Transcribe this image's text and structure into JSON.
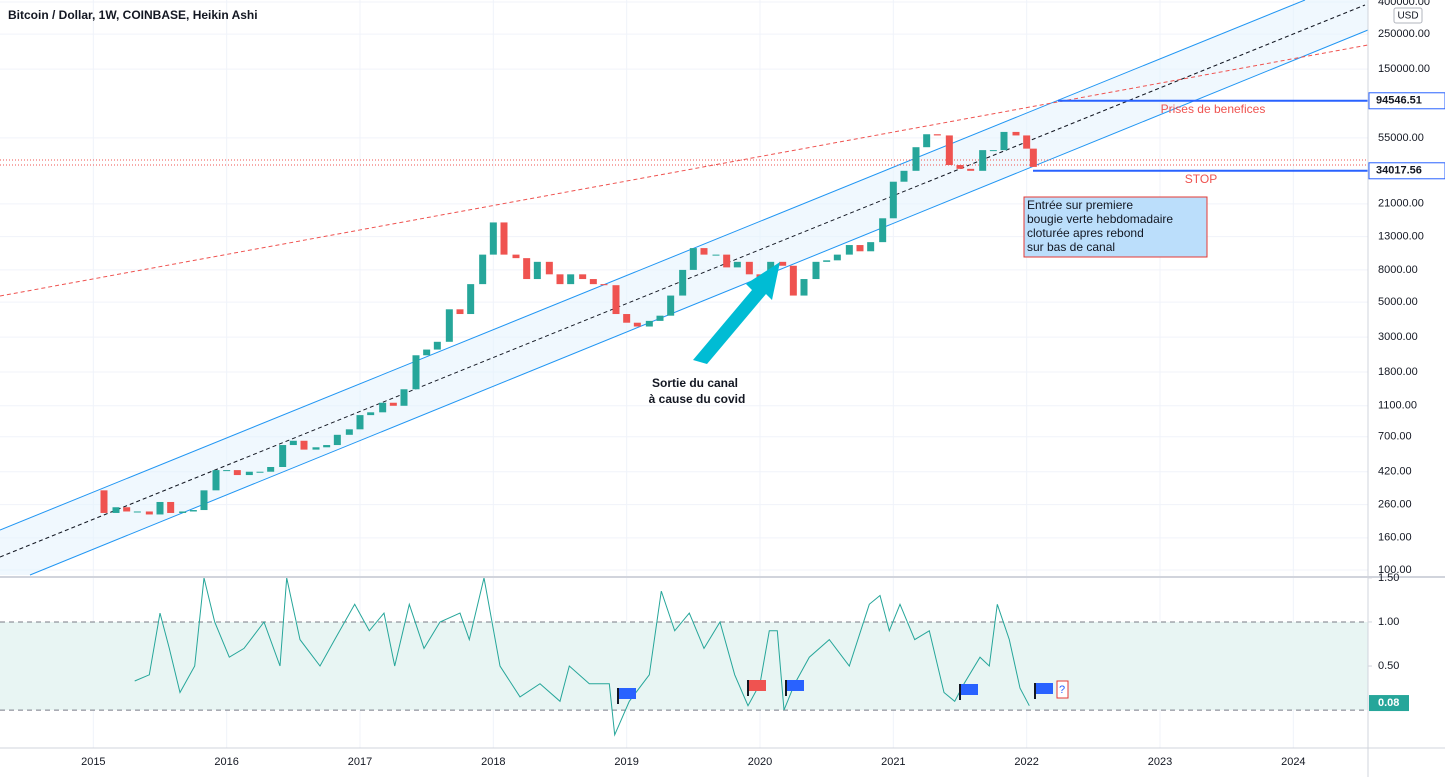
{
  "chart_data": [
    {
      "type": "candlestick",
      "title": "Bitcoin / Dollar, 1W, COINBASE, Heikin Ashi",
      "currency": "USD",
      "log_scale": true,
      "grid": true,
      "up_color": "#26a69a",
      "down_color": "#ef5350",
      "xlim": [
        2014.3,
        2024.56
      ],
      "xticks": [
        2015,
        2016,
        2017,
        2018,
        2019,
        2020,
        2021,
        2022,
        2023,
        2024
      ],
      "ylim": [
        100,
        400000
      ],
      "yticks": [
        {
          "value": 100,
          "label": "100.00"
        },
        {
          "value": 160,
          "label": "160.00"
        },
        {
          "value": 260,
          "label": "260.00"
        },
        {
          "value": 420,
          "label": "420.00"
        },
        {
          "value": 700,
          "label": "700.00"
        },
        {
          "value": 1100,
          "label": "1100.00"
        },
        {
          "value": 1800,
          "label": "1800.00"
        },
        {
          "value": 3000,
          "label": "3000.00"
        },
        {
          "value": 5000,
          "label": "5000.00"
        },
        {
          "value": 8000,
          "label": "8000.00"
        },
        {
          "value": 13000,
          "label": "13000.00"
        },
        {
          "value": 21000,
          "label": "21000.00"
        },
        {
          "value": 55000,
          "label": "55000.00"
        },
        {
          "value": 150000,
          "label": "150000.00"
        },
        {
          "value": 250000,
          "label": "250000.00"
        },
        {
          "value": 400000,
          "label": "400000.00"
        }
      ],
      "x": [
        2015.0,
        2015.08,
        2015.17,
        2015.25,
        2015.33,
        2015.42,
        2015.5,
        2015.58,
        2015.67,
        2015.75,
        2015.83,
        2015.92,
        2016.0,
        2016.08,
        2016.17,
        2016.25,
        2016.33,
        2016.42,
        2016.5,
        2016.58,
        2016.67,
        2016.75,
        2016.83,
        2016.92,
        2017.0,
        2017.08,
        2017.17,
        2017.25,
        2017.33,
        2017.42,
        2017.5,
        2017.58,
        2017.67,
        2017.75,
        2017.83,
        2017.92,
        2018.0,
        2018.08,
        2018.17,
        2018.25,
        2018.33,
        2018.42,
        2018.5,
        2018.58,
        2018.67,
        2018.75,
        2018.83,
        2018.92,
        2019.0,
        2019.08,
        2019.17,
        2019.25,
        2019.33,
        2019.42,
        2019.5,
        2019.58,
        2019.67,
        2019.75,
        2019.83,
        2019.92,
        2020.0,
        2020.08,
        2020.17,
        2020.25,
        2020.33,
        2020.42,
        2020.5,
        2020.58,
        2020.67,
        2020.75,
        2020.83,
        2020.92,
        2021.0,
        2021.08,
        2021.17,
        2021.25,
        2021.33,
        2021.42,
        2021.5,
        2021.58,
        2021.67,
        2021.75,
        2021.83,
        2021.92,
        2022.0,
        2022.05
      ],
      "values": [
        320,
        230,
        250,
        235,
        235,
        225,
        270,
        230,
        235,
        240,
        320,
        430,
        430,
        400,
        420,
        420,
        450,
        620,
        660,
        580,
        600,
        620,
        720,
        780,
        960,
        1000,
        1150,
        1100,
        1400,
        2300,
        2500,
        2800,
        4500,
        4200,
        6500,
        10000,
        16000,
        10000,
        9500,
        7000,
        9000,
        7500,
        6500,
        7500,
        7000,
        6500,
        6400,
        4200,
        3700,
        3500,
        3800,
        4100,
        5500,
        8000,
        11000,
        10000,
        10000,
        8300,
        9000,
        7500,
        7200,
        9000,
        8500,
        5500,
        7000,
        9000,
        9200,
        10000,
        11500,
        10500,
        12000,
        17000,
        29000,
        34000,
        48000,
        58000,
        57000,
        37000,
        35000,
        34000,
        46000,
        46000,
        60000,
        57000,
        47000,
        36000
      ],
      "price_lines": [
        {
          "value": 94546.51,
          "color": "#2962ff"
        },
        {
          "value": 34017.56,
          "color": "#2962ff"
        }
      ],
      "annotations": {
        "profit_taking": "Prises de benefices",
        "stop": "STOP",
        "entry_note": [
          "Entrée sur premiere",
          "bougie verte  hebdomadaire",
          "cloturée apres rebond",
          "sur bas de canal"
        ],
        "covid_note": [
          "Sortie du canal",
          "à cause du covid"
        ]
      }
    },
    {
      "type": "line",
      "color": "#26a69a",
      "band": [
        0,
        1
      ],
      "band_color": "#e8f5f3",
      "ylim": [
        -0.43,
        1.51
      ],
      "yticks": [
        {
          "value": 1.5,
          "label": "1.50"
        },
        {
          "value": 1,
          "label": "1.00"
        },
        {
          "value": 0.5,
          "label": "0.50"
        }
      ],
      "last_value": 0.08,
      "x": [
        2015.31,
        2015.42,
        2015.5,
        2015.57,
        2015.65,
        2015.76,
        2015.83,
        2015.91,
        2016.02,
        2016.13,
        2016.28,
        2016.4,
        2016.45,
        2016.55,
        2016.7,
        2016.81,
        2016.96,
        2017.07,
        2017.18,
        2017.26,
        2017.37,
        2017.48,
        2017.6,
        2017.75,
        2017.82,
        2017.93,
        2018.05,
        2018.2,
        2018.35,
        2018.5,
        2018.57,
        2018.72,
        2018.87,
        2018.91,
        2019.02,
        2019.17,
        2019.26,
        2019.36,
        2019.47,
        2019.58,
        2019.7,
        2019.81,
        2019.91,
        2020.0,
        2020.07,
        2020.13,
        2020.18,
        2020.26,
        2020.37,
        2020.52,
        2020.67,
        2020.82,
        2020.9,
        2020.97,
        2021.05,
        2021.16,
        2021.27,
        2021.38,
        2021.46,
        2021.53,
        2021.65,
        2021.72,
        2021.78,
        2021.87,
        2021.95,
        2022.02
      ],
      "values": [
        0.33,
        0.4,
        1.1,
        0.7,
        0.2,
        0.5,
        1.5,
        1.0,
        0.6,
        0.7,
        1.0,
        0.5,
        1.5,
        0.8,
        0.5,
        0.8,
        1.2,
        0.9,
        1.1,
        0.5,
        1.2,
        0.7,
        1.0,
        1.1,
        0.8,
        1.5,
        0.5,
        0.15,
        0.3,
        0.1,
        0.5,
        0.3,
        0.3,
        -0.28,
        0.1,
        0.4,
        1.35,
        0.9,
        1.1,
        0.7,
        1.0,
        0.4,
        0.05,
        0.3,
        0.9,
        0.9,
        0.0,
        0.3,
        0.6,
        0.8,
        0.5,
        1.2,
        1.3,
        0.9,
        1.2,
        0.8,
        0.9,
        0.2,
        0.1,
        0.3,
        0.6,
        0.5,
        1.2,
        0.8,
        0.25,
        0.05
      ],
      "flag_question": "?"
    }
  ]
}
